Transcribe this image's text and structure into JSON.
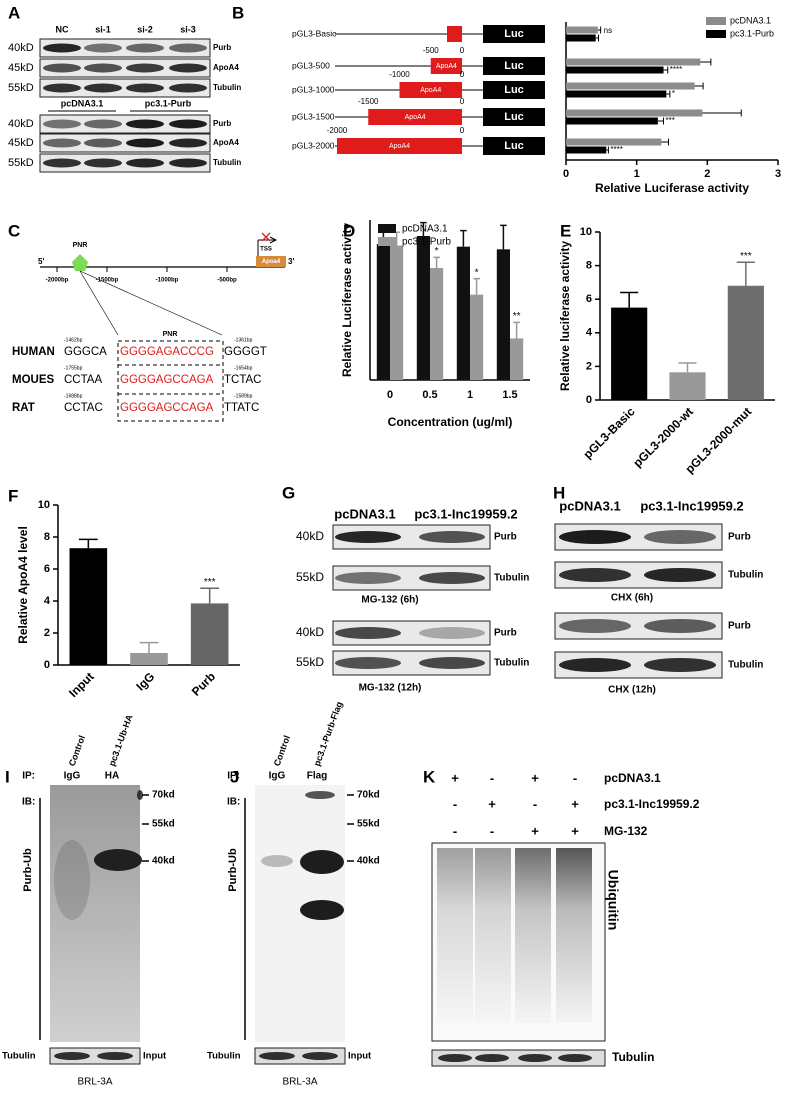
{
  "panel_labels": [
    "A",
    "B",
    "C",
    "D",
    "E",
    "F",
    "G",
    "H",
    "I",
    "J",
    "K"
  ],
  "panel_a": {
    "lanes": [
      "NC",
      "si-1",
      "si-2",
      "si-3"
    ],
    "groups": [
      "pcDNA3.1",
      "pc3.1-Purb"
    ],
    "rows": [
      {
        "size": "40kD",
        "protein": "Purb"
      },
      {
        "size": "45kD",
        "protein": "ApoA4"
      },
      {
        "size": "55kD",
        "protein": "Tubulin"
      },
      {
        "size": "40kD",
        "protein": "Purb"
      },
      {
        "size": "45kD",
        "protein": "ApoA4"
      },
      {
        "size": "55kD",
        "protein": "Tubulin"
      }
    ]
  },
  "panel_b_constructs": [
    {
      "luc": "Luc"
    },
    {
      "start": "-500",
      "end": "0",
      "box": "ApoA4",
      "luc": "Luc"
    },
    {
      "start": "-1000",
      "end": "0",
      "box": "ApoA4",
      "luc": "Luc"
    },
    {
      "start": "-1500",
      "end": "0",
      "box": "ApoA4",
      "luc": "Luc"
    },
    {
      "start": "-2000",
      "end": "0",
      "box": "ApoA4",
      "luc": "Luc"
    }
  ],
  "panel_c": {
    "pnr": "PNR",
    "five": "5'",
    "three": "3'",
    "positions": [
      "-2000bp",
      "-1500bp",
      "-1000bp",
      "-500bp"
    ],
    "tss": "TSS",
    "gene": "Apoa4",
    "box_label": "PNR",
    "species": [
      {
        "name": "HUMAN",
        "left": "-1462bp",
        "right": "-1361bp",
        "prefix": "GGGCA",
        "motif": "GGGGAGACCCG",
        "suffix": "GGGGT"
      },
      {
        "name": "MOUES",
        "left": "-1755bp",
        "right": "-1654bp",
        "prefix": "CCTAA",
        "motif": "GGGGAGCCAGA",
        "suffix": "TCTAC"
      },
      {
        "name": "RAT",
        "left": "-1688bp",
        "right": "-1589bp",
        "prefix": "CCTAC",
        "motif": "GGGGAGCCAGA",
        "suffix": "TTATC"
      }
    ]
  },
  "panel_g": {
    "columns": [
      "pcDNA3.1",
      "pc3.1-Inc19959.2"
    ],
    "rows": [
      {
        "size": "40kD",
        "protein": "Purb"
      },
      {
        "size": "55kD",
        "protein": "Tubulin"
      },
      {
        "size": "40kD",
        "protein": "Purb"
      },
      {
        "size": "55kD",
        "protein": "Tubulin"
      }
    ],
    "captions": [
      "MG-132 (6h)",
      "MG-132 (12h)"
    ]
  },
  "panel_h": {
    "columns": [
      "pcDNA3.1",
      "pc3.1-Inc19959.2"
    ],
    "rows": [
      "Purb",
      "Tubulin",
      "Purb",
      "Tubulin"
    ],
    "captions": [
      "CHX (6h)",
      "CHX (12h)"
    ]
  },
  "panel_i": {
    "lanes": [
      "Control",
      "pc3.1-Ub-HA"
    ],
    "ip": "IP:",
    "ip_lanes": [
      "IgG",
      "HA"
    ],
    "ib": "IB:",
    "markers": [
      "70kd",
      "55kd",
      "40kd"
    ],
    "antibody": "Purb-Ub",
    "loading": "Tubulin",
    "loading_note": "Input",
    "cell_line": "BRL-3A"
  },
  "panel_j": {
    "lanes": [
      "Control",
      "pc3.1-Purb-Flag"
    ],
    "ip": "IP:",
    "ip_lanes": [
      "IgG",
      "Flag"
    ],
    "ib": "IB:",
    "markers": [
      "70kd",
      "55kd",
      "40kd"
    ],
    "antibody": "Purb-Ub",
    "loading": "Tubulin",
    "loading_note": "Input",
    "cell_line": "BRL-3A"
  },
  "panel_k": {
    "conditions": [
      {
        "label": "pcDNA3.1",
        "signs": [
          "+",
          "-",
          "+",
          "-"
        ]
      },
      {
        "label": "pc3.1-Inc19959.2",
        "signs": [
          "-",
          "+",
          "-",
          "+"
        ]
      },
      {
        "label": "MG-132",
        "signs": [
          "-",
          "-",
          "+",
          "+"
        ]
      }
    ],
    "antibody": "Ubiquitin",
    "loading": "Tubulin"
  },
  "chart_data": [
    {
      "type": "bar",
      "orientation": "horizontal",
      "categories": [
        "pGL3-Basic",
        "pGL3-500",
        "pGL3-1000",
        "pGL3-1500",
        "pGL3-2000"
      ],
      "series": [
        {
          "name": "pcDNA3.1",
          "color": "#8c8c8c",
          "values": [
            0.45,
            1.9,
            1.82,
            1.93,
            1.35
          ],
          "errors": [
            0.04,
            0.15,
            0.12,
            0.55,
            0.1
          ]
        },
        {
          "name": "pc3.1-Purb",
          "color": "#000000",
          "values": [
            0.42,
            1.38,
            1.42,
            1.3,
            0.57
          ],
          "errors": [
            0.04,
            0.06,
            0.05,
            0.08,
            0.03
          ],
          "annotations": [
            "ns",
            "****",
            "*",
            "***",
            "****"
          ]
        }
      ],
      "xlim": [
        0,
        3
      ],
      "xticks": [
        0,
        1,
        2,
        3
      ],
      "xlabel": "Relative Luciferase activity",
      "legend": "upper right"
    },
    {
      "type": "bar",
      "categories": [
        "0",
        "0.5",
        "1",
        "1.5"
      ],
      "series": [
        {
          "name": "pcDNA3.1",
          "color": "#111111",
          "values": [
            2.55,
            2.7,
            2.5,
            2.45
          ],
          "errors": [
            0.25,
            0.25,
            0.3,
            0.45
          ]
        },
        {
          "name": "pc3.1-Purb",
          "color": "#999999",
          "values": [
            2.52,
            2.1,
            1.6,
            0.78
          ],
          "errors": [
            0.25,
            0.2,
            0.3,
            0.3
          ],
          "annotations": [
            null,
            "*",
            "*",
            "**"
          ]
        }
      ],
      "ylim": [
        0,
        3
      ],
      "xlabel": "Concentration (ug/ml)",
      "ylabel": "Relative Luciferase activity",
      "legend": "upper right"
    },
    {
      "type": "bar",
      "categories": [
        "pGL3-Basic",
        "pGL3-2000-wt",
        "pGL3-2000-mut"
      ],
      "values": [
        5.5,
        1.65,
        6.8
      ],
      "errors": [
        0.9,
        0.55,
        1.4
      ],
      "colors": [
        "#000000",
        "#999999",
        "#6e6e6e"
      ],
      "annotations": [
        null,
        null,
        "***"
      ],
      "ylim": [
        0,
        10
      ],
      "yticks": [
        0,
        2,
        4,
        6,
        8,
        10
      ],
      "ylabel": "Relative luciferase activity"
    },
    {
      "type": "bar",
      "categories": [
        "Input",
        "IgG",
        "Purb"
      ],
      "values": [
        7.3,
        0.75,
        3.85
      ],
      "errors": [
        0.55,
        0.65,
        0.95
      ],
      "colors": [
        "#000000",
        "#999999",
        "#666666"
      ],
      "annotations": [
        null,
        null,
        "***"
      ],
      "ylim": [
        0,
        10
      ],
      "yticks": [
        0,
        2,
        4,
        6,
        8,
        10
      ],
      "ylabel": "Relative ApoA4  level"
    }
  ]
}
